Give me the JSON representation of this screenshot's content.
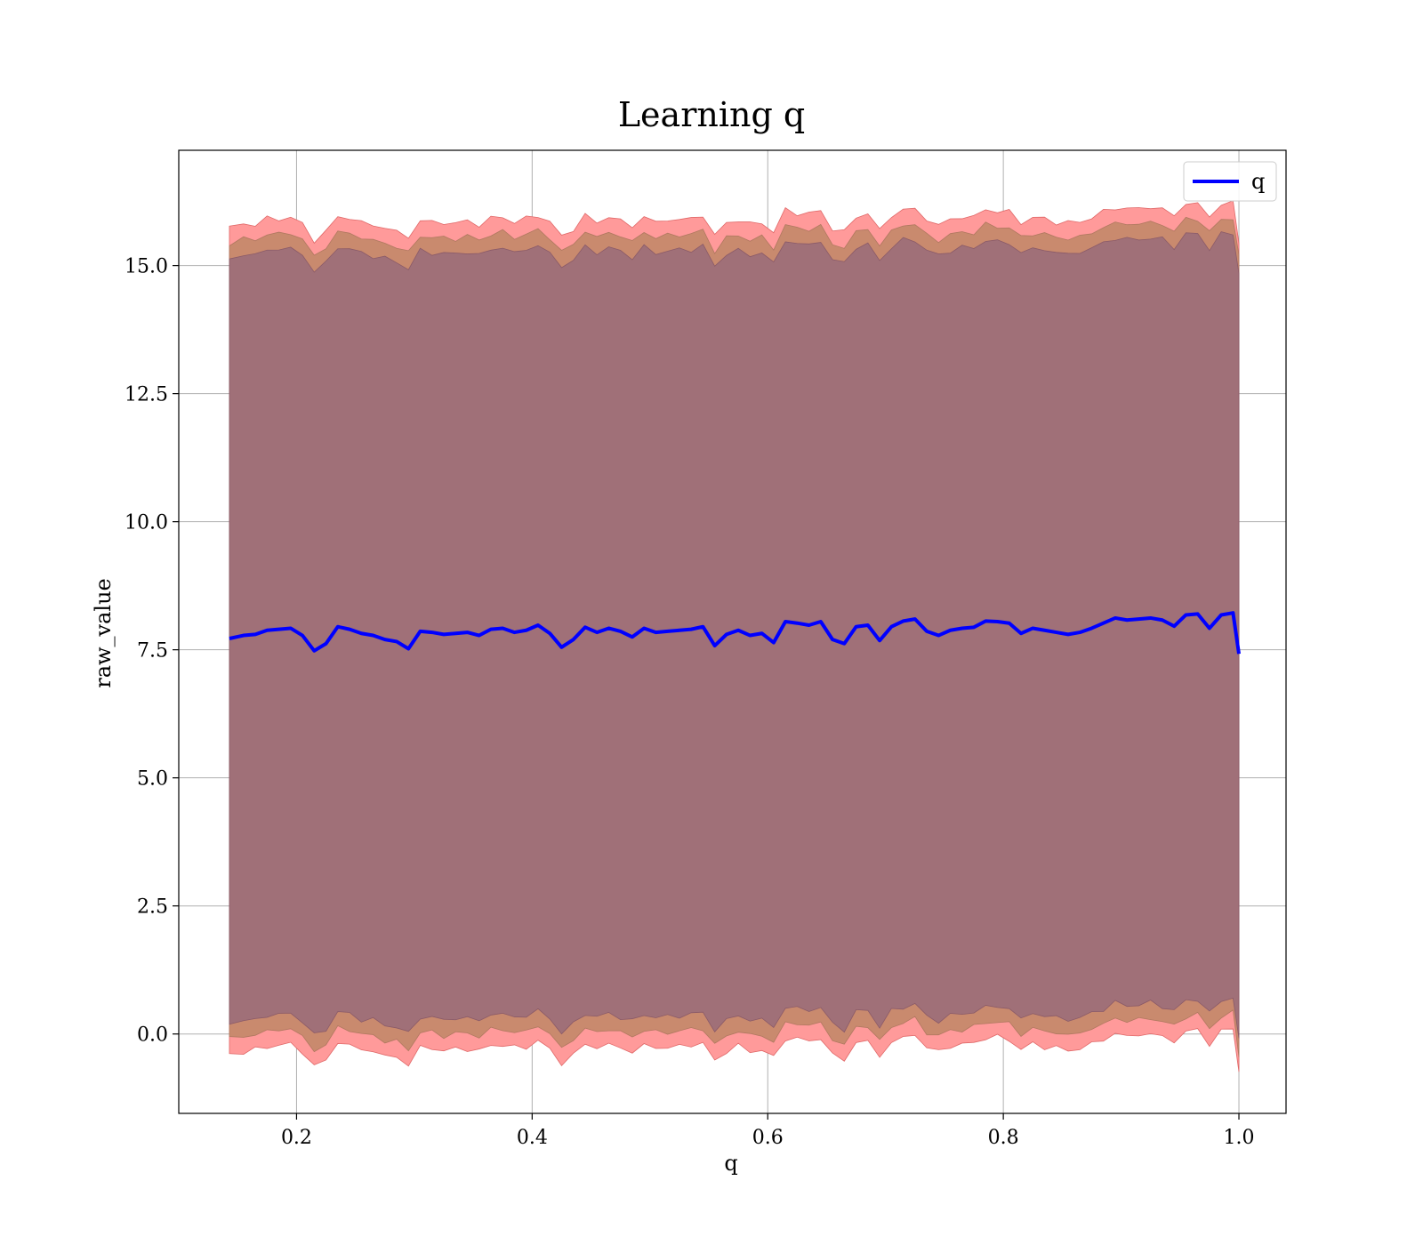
{
  "chart_data": {
    "type": "line",
    "title": "Learning q",
    "xlabel": "q",
    "ylabel": "raw_value",
    "xlim": [
      0.1,
      1.04
    ],
    "ylim": [
      -1.55,
      17.25
    ],
    "grid": true,
    "legend_position": "top-right",
    "x_ticks": [
      0.2,
      0.4,
      0.6,
      0.8,
      1.0
    ],
    "x_tick_labels": [
      "0.2",
      "0.4",
      "0.6",
      "0.8",
      "1.0"
    ],
    "y_ticks": [
      0.0,
      2.5,
      5.0,
      7.5,
      10.0,
      12.5,
      15.0
    ],
    "y_tick_labels": [
      "0.0",
      "2.5",
      "5.0",
      "7.5",
      "10.0",
      "12.5",
      "15.0"
    ],
    "x": [
      0.143,
      0.155,
      0.165,
      0.175,
      0.185,
      0.195,
      0.205,
      0.215,
      0.225,
      0.235,
      0.245,
      0.255,
      0.265,
      0.275,
      0.285,
      0.295,
      0.305,
      0.315,
      0.325,
      0.335,
      0.345,
      0.355,
      0.365,
      0.375,
      0.385,
      0.395,
      0.405,
      0.415,
      0.425,
      0.435,
      0.445,
      0.455,
      0.465,
      0.475,
      0.485,
      0.495,
      0.505,
      0.515,
      0.525,
      0.535,
      0.545,
      0.555,
      0.565,
      0.575,
      0.585,
      0.595,
      0.605,
      0.615,
      0.625,
      0.635,
      0.645,
      0.655,
      0.665,
      0.675,
      0.685,
      0.695,
      0.705,
      0.715,
      0.725,
      0.735,
      0.745,
      0.755,
      0.765,
      0.775,
      0.785,
      0.795,
      0.805,
      0.815,
      0.825,
      0.835,
      0.845,
      0.855,
      0.865,
      0.875,
      0.885,
      0.895,
      0.905,
      0.915,
      0.925,
      0.935,
      0.945,
      0.955,
      0.965,
      0.975,
      0.985,
      0.995,
      1.0
    ],
    "series": [
      {
        "name": "q",
        "color": "#0000ff",
        "values": [
          7.72,
          7.78,
          7.8,
          7.88,
          7.9,
          7.92,
          7.78,
          7.48,
          7.62,
          7.95,
          7.9,
          7.82,
          7.78,
          7.7,
          7.66,
          7.52,
          7.86,
          7.84,
          7.8,
          7.82,
          7.84,
          7.78,
          7.9,
          7.92,
          7.84,
          7.88,
          7.98,
          7.82,
          7.55,
          7.7,
          7.94,
          7.84,
          7.92,
          7.86,
          7.75,
          7.92,
          7.84,
          7.86,
          7.88,
          7.9,
          7.95,
          7.58,
          7.8,
          7.88,
          7.78,
          7.82,
          7.64,
          8.05,
          8.02,
          7.98,
          8.05,
          7.7,
          7.62,
          7.95,
          7.98,
          7.68,
          7.95,
          8.06,
          8.1,
          7.86,
          7.78,
          7.88,
          7.92,
          7.94,
          8.06,
          8.05,
          8.02,
          7.82,
          7.92,
          7.88,
          7.84,
          7.8,
          7.84,
          7.92,
          8.02,
          8.12,
          8.08,
          8.1,
          8.12,
          8.08,
          7.96,
          8.18,
          8.2,
          7.92,
          8.18,
          8.22,
          7.42
        ],
        "band_offsets": {
          "outer_upper": 8.02,
          "outer_lower": -8.12,
          "inner_upper": 7.72,
          "inner_lower": -7.82,
          "core_upper": 7.42,
          "core_lower": -7.52
        },
        "band_colors": {
          "outer": "#ff9a9a",
          "inner": "#c98a6e",
          "core": "#a07078"
        }
      }
    ]
  }
}
